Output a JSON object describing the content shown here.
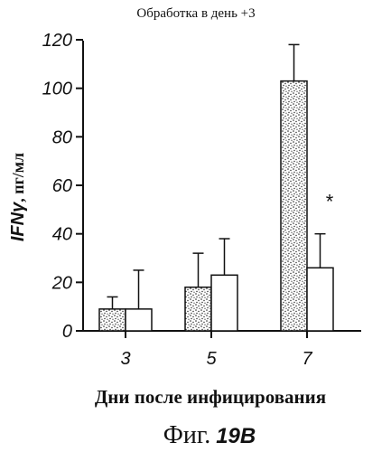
{
  "chart_data": {
    "type": "bar",
    "subtitle": "Обработка в день +3",
    "ylabel_main": "IFNγ",
    "ylabel_unit": ", пг/мл",
    "xlabel": "Дни после инфицирования",
    "figure_caption_prefix": "Фиг.",
    "figure_caption_number": "19В",
    "categories": [
      "3",
      "5",
      "7"
    ],
    "ylim": [
      0,
      120
    ],
    "yticks": [
      "0",
      "20",
      "40",
      "60",
      "80",
      "100",
      "120"
    ],
    "series": [
      {
        "fill": "stippled",
        "values": [
          9,
          18,
          103
        ],
        "errors": [
          5,
          14,
          15
        ]
      },
      {
        "fill": "white",
        "values": [
          9,
          23,
          26
        ],
        "errors": [
          16,
          15,
          14
        ]
      }
    ],
    "annotations": [
      {
        "category": "7",
        "series": 1,
        "text": "*"
      }
    ]
  }
}
